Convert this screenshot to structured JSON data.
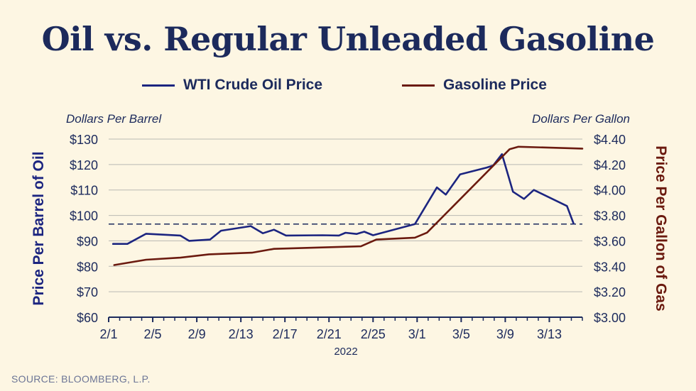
{
  "chart_data": {
    "type": "line",
    "title": "Oil vs. Regular Unleaded Gasoline",
    "xlabel": "2022",
    "ylabel_left": "Price Per Barrel of Oil",
    "ylabel_right": "Price Per Gallon of Gas",
    "unit_left": "Dollars Per Barrel",
    "unit_right": "Dollars Per Gallon",
    "x_range": [
      1,
      44
    ],
    "x_ticks": [
      {
        "x": 1,
        "label": "2/1"
      },
      {
        "x": 5,
        "label": "2/5"
      },
      {
        "x": 9,
        "label": "2/9"
      },
      {
        "x": 13,
        "label": "2/13"
      },
      {
        "x": 17,
        "label": "2/17"
      },
      {
        "x": 21,
        "label": "2/21"
      },
      {
        "x": 25,
        "label": "2/25"
      },
      {
        "x": 29,
        "label": "3/1"
      },
      {
        "x": 33,
        "label": "3/5"
      },
      {
        "x": 37,
        "label": "3/9"
      },
      {
        "x": 41,
        "label": "3/13"
      }
    ],
    "ylim_left": [
      60,
      130
    ],
    "ylim_right": [
      3.0,
      4.4
    ],
    "y_ticks_left": [
      {
        "v": 60,
        "label": "$60"
      },
      {
        "v": 70,
        "label": "$70"
      },
      {
        "v": 80,
        "label": "$80"
      },
      {
        "v": 90,
        "label": "$90"
      },
      {
        "v": 100,
        "label": "$100"
      },
      {
        "v": 110,
        "label": "$110"
      },
      {
        "v": 120,
        "label": "$120"
      },
      {
        "v": 130,
        "label": "$130"
      }
    ],
    "y_ticks_right": [
      {
        "v": 3.0,
        "label": "$3.00"
      },
      {
        "v": 3.2,
        "label": "$3.20"
      },
      {
        "v": 3.4,
        "label": "$3.40"
      },
      {
        "v": 3.6,
        "label": "$3.60"
      },
      {
        "v": 3.8,
        "label": "$3.80"
      },
      {
        "v": 4.0,
        "label": "$4.00"
      },
      {
        "v": 4.2,
        "label": "$4.20"
      },
      {
        "v": 4.4,
        "label": "$4.40"
      }
    ],
    "reference_line_left": 96.6,
    "series": [
      {
        "name": "WTI Crude Oil Price",
        "axis": "left",
        "color": "#1c2580",
        "points": [
          [
            1.4,
            88.8
          ],
          [
            2.7,
            88.8
          ],
          [
            4.4,
            92.8
          ],
          [
            7.5,
            92.1
          ],
          [
            8.3,
            90.0
          ],
          [
            10.2,
            90.5
          ],
          [
            11.2,
            94.0
          ],
          [
            13.9,
            95.8
          ],
          [
            15.0,
            93.0
          ],
          [
            16.0,
            94.4
          ],
          [
            17.1,
            92.1
          ],
          [
            20.4,
            92.2
          ],
          [
            21.9,
            92.1
          ],
          [
            22.5,
            93.2
          ],
          [
            23.5,
            92.7
          ],
          [
            24.2,
            93.6
          ],
          [
            25.0,
            92.2
          ],
          [
            28.8,
            96.6
          ],
          [
            30.8,
            111.0
          ],
          [
            31.6,
            108.2
          ],
          [
            32.9,
            116.1
          ],
          [
            35.3,
            118.8
          ],
          [
            35.9,
            119.6
          ],
          [
            36.7,
            124.1
          ],
          [
            37.7,
            109.3
          ],
          [
            38.7,
            106.5
          ],
          [
            39.6,
            110.0
          ],
          [
            42.6,
            103.7
          ],
          [
            43.2,
            96.8
          ]
        ]
      },
      {
        "name": "Gasoline Price",
        "axis": "right",
        "color": "#6b1a0f",
        "points": [
          [
            1.5,
            3.41
          ],
          [
            4.4,
            3.452
          ],
          [
            7.5,
            3.468
          ],
          [
            10.1,
            3.494
          ],
          [
            14.0,
            3.507
          ],
          [
            16.0,
            3.537
          ],
          [
            23.9,
            3.557
          ],
          [
            25.3,
            3.61
          ],
          [
            28.8,
            3.625
          ],
          [
            29.9,
            3.665
          ],
          [
            37.4,
            4.321
          ],
          [
            38.2,
            4.34
          ],
          [
            44.0,
            4.325
          ]
        ]
      }
    ]
  },
  "source": "SOURCE: BLOOMBERG, L.P."
}
